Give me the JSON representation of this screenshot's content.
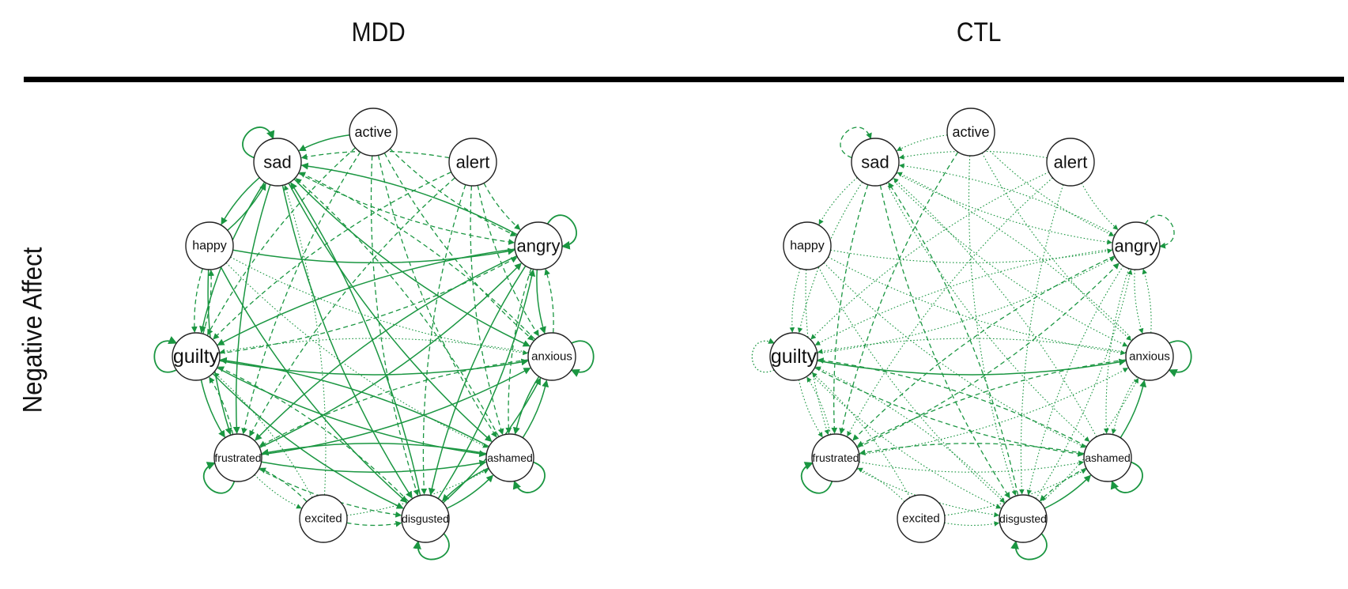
{
  "columns": [
    {
      "id": "mdd",
      "title": "MDD"
    },
    {
      "id": "ctl",
      "title": "CTL"
    }
  ],
  "row_label": "Negative Affect",
  "edge_color": "#1a9641",
  "nodes": [
    {
      "id": "sad",
      "label": "sad"
    },
    {
      "id": "active",
      "label": "active"
    },
    {
      "id": "alert",
      "label": "alert"
    },
    {
      "id": "happy",
      "label": "happy"
    },
    {
      "id": "angry",
      "label": "angry"
    },
    {
      "id": "guilty",
      "label": "guilty"
    },
    {
      "id": "anxious",
      "label": "anxious"
    },
    {
      "id": "frustrated",
      "label": "frustrated"
    },
    {
      "id": "ashamed",
      "label": "ashamed"
    },
    {
      "id": "excited",
      "label": "excited"
    },
    {
      "id": "disgusted",
      "label": "disgusted"
    }
  ],
  "networks": {
    "mdd": {
      "self_loops": [
        {
          "node": "sad",
          "style": "solid"
        },
        {
          "node": "angry",
          "style": "solid"
        },
        {
          "node": "guilty",
          "style": "solid"
        },
        {
          "node": "anxious",
          "style": "solid"
        },
        {
          "node": "frustrated",
          "style": "solid"
        },
        {
          "node": "ashamed",
          "style": "solid"
        },
        {
          "node": "disgusted",
          "style": "solid"
        }
      ],
      "edges": [
        {
          "from": "active",
          "to": "sad",
          "style": "solid"
        },
        {
          "from": "happy",
          "to": "sad",
          "style": "solid"
        },
        {
          "from": "sad",
          "to": "happy",
          "style": "solid"
        },
        {
          "from": "happy",
          "to": "angry",
          "style": "solid"
        },
        {
          "from": "happy",
          "to": "guilty",
          "style": "dashed"
        },
        {
          "from": "happy",
          "to": "frustrated",
          "style": "solid"
        },
        {
          "from": "happy",
          "to": "disgusted",
          "style": "solid"
        },
        {
          "from": "sad",
          "to": "guilty",
          "style": "solid"
        },
        {
          "from": "sad",
          "to": "frustrated",
          "style": "solid"
        },
        {
          "from": "sad",
          "to": "disgusted",
          "style": "solid"
        },
        {
          "from": "sad",
          "to": "ashamed",
          "style": "solid"
        },
        {
          "from": "sad",
          "to": "anxious",
          "style": "solid"
        },
        {
          "from": "sad",
          "to": "angry",
          "style": "dashed"
        },
        {
          "from": "active",
          "to": "angry",
          "style": "dashed"
        },
        {
          "from": "active",
          "to": "anxious",
          "style": "dashed"
        },
        {
          "from": "active",
          "to": "disgusted",
          "style": "dashed"
        },
        {
          "from": "active",
          "to": "frustrated",
          "style": "dashed"
        },
        {
          "from": "active",
          "to": "guilty",
          "style": "dashed"
        },
        {
          "from": "active",
          "to": "ashamed",
          "style": "dashed"
        },
        {
          "from": "alert",
          "to": "sad",
          "style": "dashed"
        },
        {
          "from": "alert",
          "to": "angry",
          "style": "dashed"
        },
        {
          "from": "alert",
          "to": "anxious",
          "style": "dashed"
        },
        {
          "from": "alert",
          "to": "guilty",
          "style": "dashed"
        },
        {
          "from": "alert",
          "to": "frustrated",
          "style": "dashed"
        },
        {
          "from": "alert",
          "to": "ashamed",
          "style": "dashed"
        },
        {
          "from": "alert",
          "to": "disgusted",
          "style": "dashed"
        },
        {
          "from": "angry",
          "to": "guilty",
          "style": "solid"
        },
        {
          "from": "angry",
          "to": "frustrated",
          "style": "solid"
        },
        {
          "from": "angry",
          "to": "sad",
          "style": "solid"
        },
        {
          "from": "angry",
          "to": "anxious",
          "style": "solid"
        },
        {
          "from": "anxious",
          "to": "angry",
          "style": "dashed"
        },
        {
          "from": "angry",
          "to": "ashamed",
          "style": "dashed"
        },
        {
          "from": "angry",
          "to": "disgusted",
          "style": "solid"
        },
        {
          "from": "guilty",
          "to": "anxious",
          "style": "solid"
        },
        {
          "from": "guilty",
          "to": "ashamed",
          "style": "solid"
        },
        {
          "from": "guilty",
          "to": "disgusted",
          "style": "solid"
        },
        {
          "from": "guilty",
          "to": "frustrated",
          "style": "solid"
        },
        {
          "from": "guilty",
          "to": "angry",
          "style": "dashed"
        },
        {
          "from": "guilty",
          "to": "happy",
          "style": "dashed"
        },
        {
          "from": "frustrated",
          "to": "guilty",
          "style": "dashed"
        },
        {
          "from": "frustrated",
          "to": "ashamed",
          "style": "solid"
        },
        {
          "from": "frustrated",
          "to": "anxious",
          "style": "solid"
        },
        {
          "from": "frustrated",
          "to": "disgusted",
          "style": "dashed"
        },
        {
          "from": "frustrated",
          "to": "angry",
          "style": "solid"
        },
        {
          "from": "ashamed",
          "to": "guilty",
          "style": "solid"
        },
        {
          "from": "ashamed",
          "to": "frustrated",
          "style": "solid"
        },
        {
          "from": "ashamed",
          "to": "anxious",
          "style": "solid"
        },
        {
          "from": "ashamed",
          "to": "disgusted",
          "style": "solid"
        },
        {
          "from": "ashamed",
          "to": "sad",
          "style": "dashed"
        },
        {
          "from": "disgusted",
          "to": "ashamed",
          "style": "solid"
        },
        {
          "from": "disgusted",
          "to": "anxious",
          "style": "solid"
        },
        {
          "from": "disgusted",
          "to": "angry",
          "style": "solid"
        },
        {
          "from": "disgusted",
          "to": "sad",
          "style": "solid"
        },
        {
          "from": "disgusted",
          "to": "guilty",
          "style": "dashed"
        },
        {
          "from": "anxious",
          "to": "ashamed",
          "style": "solid"
        },
        {
          "from": "anxious",
          "to": "sad",
          "style": "dashed"
        },
        {
          "from": "anxious",
          "to": "guilty",
          "style": "dotted"
        },
        {
          "from": "anxious",
          "to": "frustrated",
          "style": "dashed"
        },
        {
          "from": "excited",
          "to": "disgusted",
          "style": "dashed"
        },
        {
          "from": "excited",
          "to": "frustrated",
          "style": "dashed"
        },
        {
          "from": "excited",
          "to": "guilty",
          "style": "dotted"
        },
        {
          "from": "excited",
          "to": "ashamed",
          "style": "dotted"
        },
        {
          "from": "excited",
          "to": "sad",
          "style": "dotted"
        },
        {
          "from": "frustrated",
          "to": "excited",
          "style": "dotted"
        },
        {
          "from": "happy",
          "to": "ashamed",
          "style": "dotted"
        },
        {
          "from": "happy",
          "to": "anxious",
          "style": "dotted"
        }
      ]
    },
    "ctl": {
      "self_loops": [
        {
          "node": "sad",
          "style": "dashed"
        },
        {
          "node": "angry",
          "style": "dashed"
        },
        {
          "node": "guilty",
          "style": "dotted"
        },
        {
          "node": "anxious",
          "style": "solid"
        },
        {
          "node": "frustrated",
          "style": "solid"
        },
        {
          "node": "ashamed",
          "style": "solid"
        },
        {
          "node": "disgusted",
          "style": "solid"
        }
      ],
      "edges": [
        {
          "from": "active",
          "to": "sad",
          "style": "dotted"
        },
        {
          "from": "active",
          "to": "angry",
          "style": "dotted"
        },
        {
          "from": "active",
          "to": "frustrated",
          "style": "dashed"
        },
        {
          "from": "active",
          "to": "disgusted",
          "style": "dotted"
        },
        {
          "from": "active",
          "to": "anxious",
          "style": "dotted"
        },
        {
          "from": "alert",
          "to": "sad",
          "style": "dotted"
        },
        {
          "from": "alert",
          "to": "angry",
          "style": "dotted"
        },
        {
          "from": "alert",
          "to": "guilty",
          "style": "dotted"
        },
        {
          "from": "alert",
          "to": "frustrated",
          "style": "dotted"
        },
        {
          "from": "alert",
          "to": "disgusted",
          "style": "dotted"
        },
        {
          "from": "happy",
          "to": "guilty",
          "style": "dotted"
        },
        {
          "from": "happy",
          "to": "frustrated",
          "style": "dotted"
        },
        {
          "from": "happy",
          "to": "angry",
          "style": "dotted"
        },
        {
          "from": "happy",
          "to": "disgusted",
          "style": "dotted"
        },
        {
          "from": "happy",
          "to": "anxious",
          "style": "dotted"
        },
        {
          "from": "sad",
          "to": "guilty",
          "style": "dotted"
        },
        {
          "from": "sad",
          "to": "frustrated",
          "style": "dashed"
        },
        {
          "from": "sad",
          "to": "disgusted",
          "style": "dashed"
        },
        {
          "from": "sad",
          "to": "angry",
          "style": "dotted"
        },
        {
          "from": "sad",
          "to": "anxious",
          "style": "dotted"
        },
        {
          "from": "sad",
          "to": "ashamed",
          "style": "dotted"
        },
        {
          "from": "angry",
          "to": "sad",
          "style": "dotted"
        },
        {
          "from": "angry",
          "to": "guilty",
          "style": "dotted"
        },
        {
          "from": "angry",
          "to": "frustrated",
          "style": "dashed"
        },
        {
          "from": "angry",
          "to": "anxious",
          "style": "dotted"
        },
        {
          "from": "angry",
          "to": "disgusted",
          "style": "dotted"
        },
        {
          "from": "angry",
          "to": "ashamed",
          "style": "dotted"
        },
        {
          "from": "guilty",
          "to": "anxious",
          "style": "solid"
        },
        {
          "from": "guilty",
          "to": "frustrated",
          "style": "dotted"
        },
        {
          "from": "guilty",
          "to": "ashamed",
          "style": "dashed"
        },
        {
          "from": "guilty",
          "to": "disgusted",
          "style": "dotted"
        },
        {
          "from": "guilty",
          "to": "angry",
          "style": "dotted"
        },
        {
          "from": "anxious",
          "to": "guilty",
          "style": "dotted"
        },
        {
          "from": "anxious",
          "to": "frustrated",
          "style": "dashed"
        },
        {
          "from": "anxious",
          "to": "ashamed",
          "style": "dotted"
        },
        {
          "from": "anxious",
          "to": "sad",
          "style": "dotted"
        },
        {
          "from": "anxious",
          "to": "angry",
          "style": "dotted"
        },
        {
          "from": "frustrated",
          "to": "guilty",
          "style": "dotted"
        },
        {
          "from": "frustrated",
          "to": "ashamed",
          "style": "dotted"
        },
        {
          "from": "frustrated",
          "to": "disgusted",
          "style": "dotted"
        },
        {
          "from": "frustrated",
          "to": "anxious",
          "style": "dotted"
        },
        {
          "from": "frustrated",
          "to": "angry",
          "style": "dashed"
        },
        {
          "from": "ashamed",
          "to": "guilty",
          "style": "dashed"
        },
        {
          "from": "ashamed",
          "to": "frustrated",
          "style": "dashed"
        },
        {
          "from": "ashamed",
          "to": "disgusted",
          "style": "dashed"
        },
        {
          "from": "ashamed",
          "to": "anxious",
          "style": "solid"
        },
        {
          "from": "ashamed",
          "to": "sad",
          "style": "dotted"
        },
        {
          "from": "disgusted",
          "to": "ashamed",
          "style": "solid"
        },
        {
          "from": "disgusted",
          "to": "angry",
          "style": "dotted"
        },
        {
          "from": "disgusted",
          "to": "anxious",
          "style": "dotted"
        },
        {
          "from": "disgusted",
          "to": "sad",
          "style": "dashed"
        },
        {
          "from": "disgusted",
          "to": "guilty",
          "style": "dotted"
        },
        {
          "from": "excited",
          "to": "disgusted",
          "style": "dotted"
        },
        {
          "from": "excited",
          "to": "frustrated",
          "style": "dotted"
        },
        {
          "from": "excited",
          "to": "guilty",
          "style": "dotted"
        },
        {
          "from": "excited",
          "to": "ashamed",
          "style": "dotted"
        },
        {
          "from": "happy",
          "to": "ashamed",
          "style": "dotted"
        },
        {
          "from": "sad",
          "to": "happy",
          "style": "dotted"
        }
      ]
    }
  }
}
